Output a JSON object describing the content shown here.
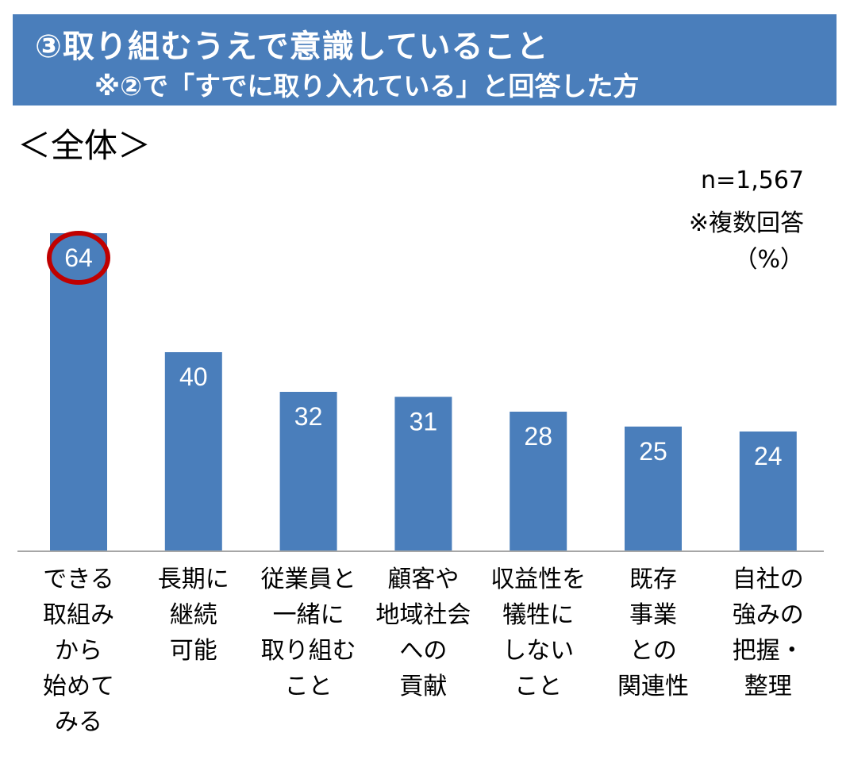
{
  "header": {
    "title": "③取り組むうえで意識していること",
    "subtitle": "※②で「すでに取り入れている」と回答した方"
  },
  "scope_label": "＜全体＞",
  "sample_size": "n=1,567",
  "note": "※複数回答",
  "unit": "（%）",
  "colors": {
    "banner": "#4a7ebb",
    "bar": "#4a7ebb",
    "highlight_circle": "#c00000"
  },
  "chart_data": {
    "type": "bar",
    "categories": [
      "できる\n取組み\nから\n始めて\nみる",
      "長期に\n継続\n可能",
      "従業員と\n一緒に\n取り組む\nこと",
      "顧客や\n地域社会\nへの\n貢献",
      "収益性を\n犠牲に\nしない\nこと",
      "既存\n事業\nとの\n関連性",
      "自社の\n強みの\n把握・\n整理"
    ],
    "values": [
      64,
      40,
      32,
      31,
      28,
      25,
      24
    ],
    "data_labels": [
      "64",
      "40",
      "32",
      "31",
      "28",
      "25",
      "24"
    ],
    "highlighted_index": 0,
    "ylim": [
      0,
      64
    ]
  }
}
